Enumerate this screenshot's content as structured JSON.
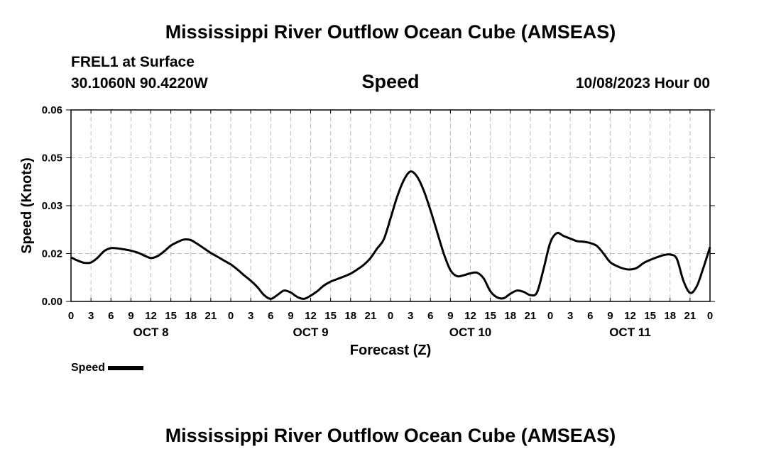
{
  "header": {
    "title": "Mississippi River Outflow Ocean Cube (AMSEAS)",
    "station": "FREL1 at Surface",
    "coords": "30.1060N  90.4220W",
    "chart_title": "Speed",
    "forecast_date": "10/08/2023 Hour 00"
  },
  "footer": {
    "title": "Mississippi River Outflow Ocean Cube (AMSEAS)"
  },
  "legend": {
    "label": "Speed",
    "color": "#000000"
  },
  "chart_data": {
    "type": "line",
    "xlabel": "Forecast (Z)",
    "ylabel": "Speed (Knots)",
    "xlim": [
      0,
      96
    ],
    "ylim": [
      0,
      0.06
    ],
    "y_tick_labels": [
      "0.00",
      "0.02",
      "0.03",
      "0.05",
      "0.06"
    ],
    "y_tick_values": [
      0,
      0.015,
      0.03,
      0.045,
      0.06
    ],
    "x_tick_labels": [
      "0",
      "3",
      "6",
      "9",
      "12",
      "15",
      "18",
      "21",
      "0",
      "3",
      "6",
      "9",
      "12",
      "15",
      "18",
      "21",
      "0",
      "3",
      "6",
      "9",
      "12",
      "15",
      "18",
      "21",
      "0",
      "3",
      "6",
      "9",
      "12",
      "15",
      "18",
      "21",
      "0"
    ],
    "day_labels": [
      {
        "text": "OCT 8",
        "x": 12
      },
      {
        "text": "OCT 9",
        "x": 36
      },
      {
        "text": "OCT 10",
        "x": 60
      },
      {
        "text": "OCT 11",
        "x": 84
      }
    ],
    "grid": true,
    "legend_position": "bottom-left",
    "series": [
      {
        "name": "Speed",
        "color": "#000000",
        "x": [
          0,
          1,
          2,
          3,
          4,
          5,
          6,
          7,
          8,
          9,
          10,
          11,
          12,
          13,
          14,
          15,
          16,
          17,
          18,
          19,
          20,
          21,
          22,
          23,
          24,
          25,
          26,
          27,
          28,
          29,
          30,
          31,
          32,
          33,
          34,
          35,
          36,
          37,
          38,
          39,
          40,
          41,
          42,
          43,
          44,
          45,
          46,
          47,
          48,
          49,
          50,
          51,
          52,
          53,
          54,
          55,
          56,
          57,
          58,
          59,
          60,
          61,
          62,
          63,
          64,
          65,
          66,
          67,
          68,
          69,
          70,
          71,
          72,
          73,
          74,
          75,
          76,
          77,
          78,
          79,
          80,
          81,
          82,
          83,
          84,
          85,
          86,
          87,
          88,
          89,
          90,
          91,
          92,
          93,
          94,
          95,
          96
        ],
        "y": [
          0.0138,
          0.0128,
          0.0121,
          0.0122,
          0.0137,
          0.0158,
          0.0167,
          0.0166,
          0.0163,
          0.0159,
          0.0153,
          0.0144,
          0.0136,
          0.0142,
          0.0157,
          0.0175,
          0.0186,
          0.0194,
          0.0192,
          0.018,
          0.0166,
          0.0152,
          0.014,
          0.0128,
          0.0116,
          0.01,
          0.0082,
          0.0065,
          0.0045,
          0.002,
          0.0008,
          0.002,
          0.0034,
          0.0028,
          0.0014,
          0.0008,
          0.0018,
          0.0032,
          0.005,
          0.0062,
          0.007,
          0.0078,
          0.0087,
          0.01,
          0.0115,
          0.0136,
          0.0166,
          0.0195,
          0.026,
          0.0328,
          0.038,
          0.0407,
          0.0391,
          0.0347,
          0.0286,
          0.0218,
          0.015,
          0.0098,
          0.0079,
          0.0082,
          0.0088,
          0.009,
          0.0072,
          0.0032,
          0.0013,
          0.001,
          0.0024,
          0.0034,
          0.003,
          0.002,
          0.0028,
          0.0102,
          0.0184,
          0.0214,
          0.0205,
          0.0197,
          0.0189,
          0.0187,
          0.0183,
          0.0174,
          0.015,
          0.0123,
          0.0111,
          0.0103,
          0.01,
          0.0105,
          0.012,
          0.013,
          0.0138,
          0.0145,
          0.0147,
          0.0134,
          0.0065,
          0.0027,
          0.0047,
          0.0105,
          0.017
        ]
      }
    ]
  }
}
